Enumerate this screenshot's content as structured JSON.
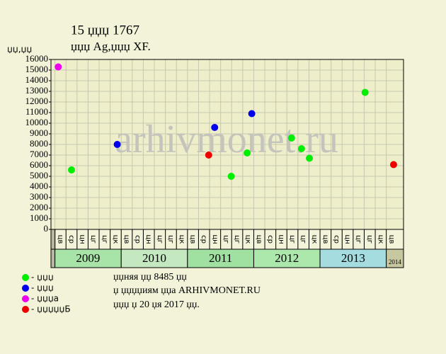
{
  "chart_data": {
    "type": "scatter",
    "title": "15 џџџ 1767",
    "subtitle": "џџџ Ag,џџџ XF.",
    "y_label": "џџ,џџ",
    "watermark": "arhivmonet.ru",
    "ylim": [
      0,
      16000
    ],
    "yticks": [
      0,
      1000,
      2000,
      3000,
      4000,
      5000,
      6000,
      7000,
      8000,
      9000,
      10000,
      11000,
      12000,
      13000,
      14000,
      15000,
      16000
    ],
    "xlim": [
      2008.94,
      2014.26
    ],
    "grid": true,
    "years": [
      2009,
      2010,
      2011,
      2012,
      2013,
      2014
    ],
    "year_colors": [
      "#a8e4a8",
      "#c4e8c0",
      "#a0e0a0",
      "#ace8ac",
      "#a4dce0",
      "#c8c8a0"
    ],
    "month_labels": [
      "цв",
      "ср",
      "цн",
      "цг",
      "цг",
      "цк",
      "цв",
      "ср",
      "цн",
      "цг",
      "цг",
      "цк",
      "цв",
      "ср",
      "цн",
      "цг",
      "цг",
      "цк",
      "цв",
      "ср",
      "цн",
      "цг",
      "цг",
      "цк",
      "цв",
      "ср",
      "цн",
      "цг",
      "цг",
      "цк",
      "цв"
    ],
    "series": [
      {
        "name": "- џџџ",
        "color": "#00ee00",
        "x": [
          2009.25,
          2011.66,
          2011.9,
          2012.57,
          2012.72,
          2012.84,
          2013.68
        ],
        "values": [
          5600,
          5000,
          7200,
          8600,
          7600,
          6700,
          12900
        ]
      },
      {
        "name": "- џџџ",
        "color": "#0000ee",
        "x": [
          2009.94,
          2011.41,
          2011.97
        ],
        "values": [
          8000,
          9600,
          10900
        ]
      },
      {
        "name": "- џџџа",
        "color": "#ee00ee",
        "x": [
          2009.05
        ],
        "values": [
          15300
        ]
      },
      {
        "name": "- џџџџџБ",
        "color": "#ee0000",
        "x": [
          2011.32,
          2014.11
        ],
        "values": [
          7000,
          6100
        ]
      }
    ],
    "notes": [
      "џџняя џџ 8485 џџ",
      "џ џџџџиям џџа ARHIVMONET.RU",
      "џџџ џ 20 џя 2017 џџ."
    ]
  }
}
